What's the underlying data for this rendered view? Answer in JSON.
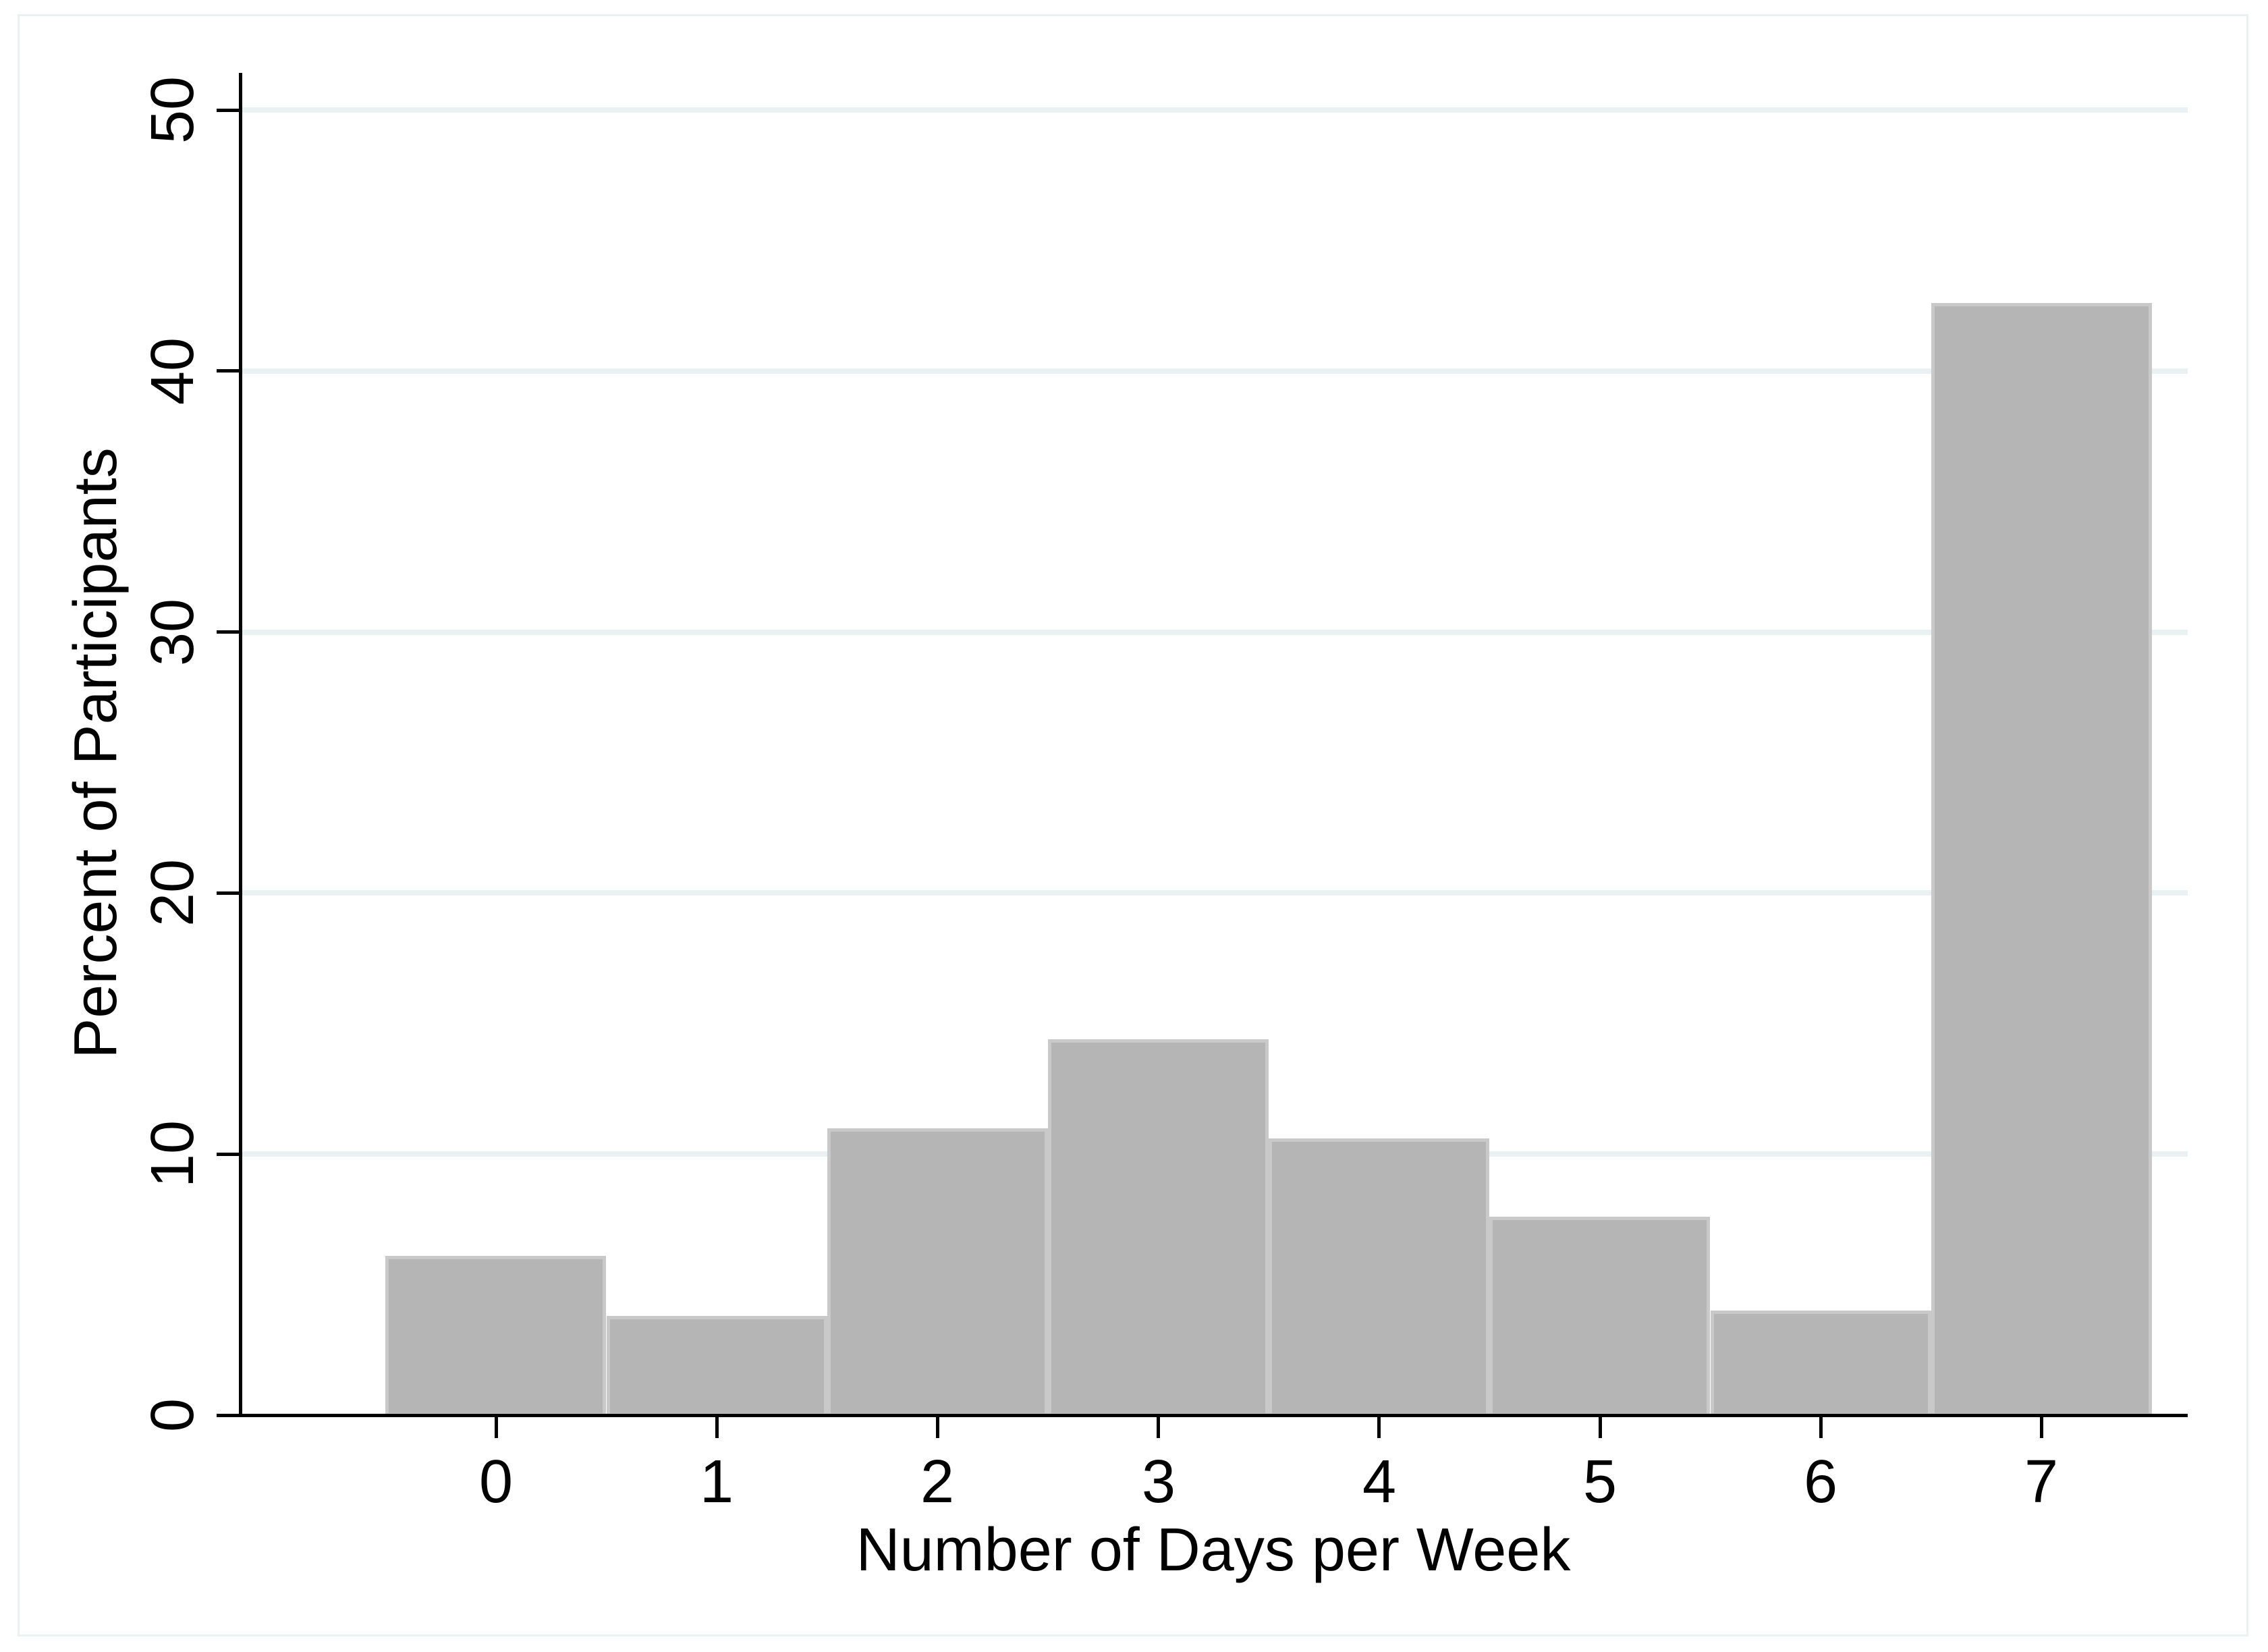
{
  "chart_data": {
    "type": "bar",
    "variant": "histogram",
    "title": "",
    "xlabel": "Number of Days per Week",
    "ylabel": "Percent of Participants",
    "categories": [
      0,
      1,
      2,
      3,
      4,
      5,
      6,
      7
    ],
    "values": [
      6.1,
      3.8,
      11.0,
      14.4,
      10.6,
      7.6,
      4.0,
      42.6
    ],
    "bin_width": 1,
    "xticks": [
      "0",
      "1",
      "2",
      "3",
      "4",
      "5",
      "6",
      "7"
    ],
    "yticks": [
      "0",
      "10",
      "20",
      "30",
      "40",
      "50"
    ],
    "ytick_values": [
      0,
      10,
      20,
      30,
      40,
      50
    ],
    "ylim": [
      0,
      50
    ],
    "grid": "horizontal gridlines at each y tick, drawn behind bars",
    "legend": "none",
    "colors": {
      "bar_fill": "#b5b5b5",
      "bar_outline": "#c9c9c9",
      "gridline": "#e9f1f2",
      "graph_border": "#e9f1f2",
      "axis": "#000000",
      "text": "#000000",
      "background": "#ffffff"
    }
  }
}
